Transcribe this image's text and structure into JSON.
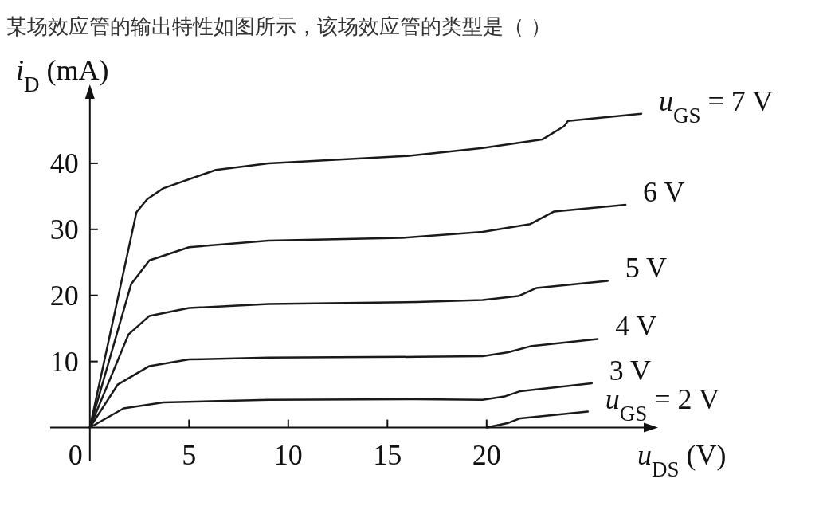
{
  "chart_data": {
    "type": "line",
    "title": "某场效应管的输出特性如图所示，该场效应管的类型是（    ）",
    "xlabel": "u$_{DS}$ (V)",
    "ylabel": "i$_{D}$ (mA)",
    "xlim": [
      -2,
      28
    ],
    "ylim": [
      -5,
      50
    ],
    "xticks": [
      0,
      5,
      10,
      15,
      20
    ],
    "yticks": [
      10,
      20,
      30,
      40
    ],
    "grid": false,
    "legend": false,
    "marker": "none",
    "line_style": "solid",
    "series": [
      {
        "name": "u$_{GS}$ = 7 V",
        "color": "#1a1a1a",
        "x": [
          0,
          2.35,
          2.9,
          3.7,
          6.35,
          9.0,
          16.0,
          19.8,
          22.8,
          23.9,
          24.1,
          27.8
        ],
        "values": [
          0,
          32.6,
          34.6,
          36.2,
          39,
          40,
          41.1,
          42.3,
          43.6,
          45.6,
          46.4,
          47.5
        ]
      },
      {
        "name": "6 V",
        "color": "#1a1a1a",
        "x": [
          0,
          2.08,
          3.0,
          5.0,
          9.0,
          15.7,
          19.8,
          22.2,
          23.4,
          27.0
        ],
        "values": [
          0,
          21.7,
          25.3,
          27.3,
          28.3,
          28.7,
          29.6,
          30.8,
          32.7,
          33.7
        ]
      },
      {
        "name": "5 V",
        "color": "#1a1a1a",
        "x": [
          0,
          1.95,
          3.0,
          5.0,
          9.0,
          16.5,
          19.8,
          21.6,
          22.5,
          26.1
        ],
        "values": [
          0,
          14.1,
          16.9,
          18.1,
          18.7,
          19.0,
          19.3,
          19.9,
          21.1,
          22.2
        ]
      },
      {
        "name": "4 V",
        "color": "#1a1a1a",
        "x": [
          0,
          1.4,
          3.0,
          5.0,
          9.0,
          16.5,
          19.8,
          21.1,
          22.2,
          25.6
        ],
        "values": [
          0,
          6.5,
          9.3,
          10.3,
          10.6,
          10.7,
          10.8,
          11.4,
          12.3,
          13.4
        ]
      },
      {
        "name": "3 V",
        "color": "#1a1a1a",
        "x": [
          0,
          1.7,
          3.7,
          9.0,
          16.5,
          19.8,
          20.9,
          21.7,
          25.3
        ],
        "values": [
          0,
          2.9,
          3.8,
          4.2,
          4.3,
          4.2,
          4.7,
          5.5,
          6.7
        ]
      },
      {
        "name": "u$_{GS}$ = 2 V",
        "color": "#1a1a1a",
        "x": [
          20.0,
          21.1,
          21.7,
          25.1
        ],
        "values": [
          0,
          0.7,
          1.4,
          2.4
        ]
      }
    ]
  }
}
